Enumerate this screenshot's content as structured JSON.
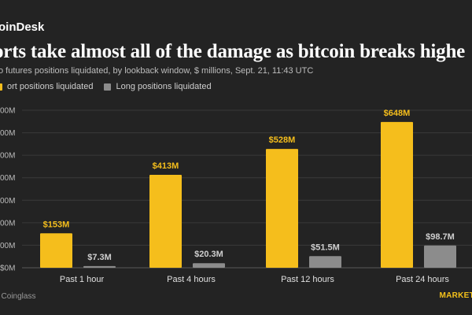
{
  "brand": "oinDesk",
  "title": "orts take almost all of the damage as bitcoin breaks highe",
  "subtitle": "o futures positions liquidated, by lookback window, $ millions, Sept. 21, 11:43 UTC",
  "source": ": Coinglass",
  "footer_brand": "MARKETS",
  "colors": {
    "background": "#232323",
    "short": "#F5BE1C",
    "long": "#8C8C8C",
    "grid": "#3a3a3a",
    "accent": "#F5C21B"
  },
  "chart_data": {
    "type": "bar",
    "categories": [
      "Past 1 hour",
      "Past 4 hours",
      "Past 12 hours",
      "Past 24 hours"
    ],
    "series": [
      {
        "name": "ort positions liquidated",
        "values": [
          153,
          413,
          528,
          648
        ],
        "labels": [
          "$153M",
          "$413M",
          "$528M",
          "$648M"
        ]
      },
      {
        "name": "Long positions liquidated",
        "values": [
          7.3,
          20.3,
          51.5,
          98.7
        ],
        "labels": [
          "$7.3M",
          "$20.3M",
          "$51.5M",
          "$98.7M"
        ]
      }
    ],
    "yticks": [
      0,
      100,
      200,
      300,
      400,
      500,
      600,
      700
    ],
    "ytick_labels": [
      "$0M",
      "00M",
      "00M",
      "00M",
      "00M",
      "00M",
      "00M",
      "00M"
    ],
    "ylim": [
      0,
      700
    ],
    "grid": true,
    "legend_position": "top-left"
  }
}
